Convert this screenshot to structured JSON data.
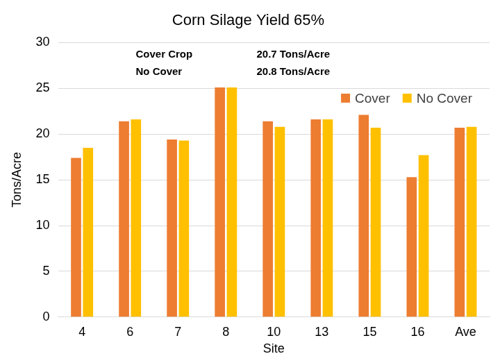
{
  "chart_data": {
    "type": "bar",
    "title": "Corn Silage Yield 65%",
    "x_label": "Site",
    "y_label": "Tons/Acre",
    "categories": [
      "4",
      "6",
      "7",
      "8",
      "10",
      "13",
      "15",
      "16",
      "Ave"
    ],
    "series": [
      {
        "name": "Cover",
        "color": "#ed7d31",
        "values": [
          17.4,
          21.4,
          19.4,
          25.1,
          21.4,
          21.6,
          22.1,
          15.3,
          20.7
        ]
      },
      {
        "name": "No Cover",
        "color": "#ffc000",
        "values": [
          18.5,
          21.6,
          19.3,
          25.1,
          20.8,
          21.6,
          20.7,
          17.7,
          20.8
        ]
      }
    ],
    "ylim": [
      0,
      30
    ],
    "yticks": [
      0,
      5,
      10,
      15,
      20,
      25,
      30
    ],
    "grid": true,
    "legend": "upper right",
    "annotations": [
      [
        "Cover Crop",
        "20.7 Tons/Acre"
      ],
      [
        "No Cover",
        "20.8 Tons/Acre"
      ]
    ]
  }
}
